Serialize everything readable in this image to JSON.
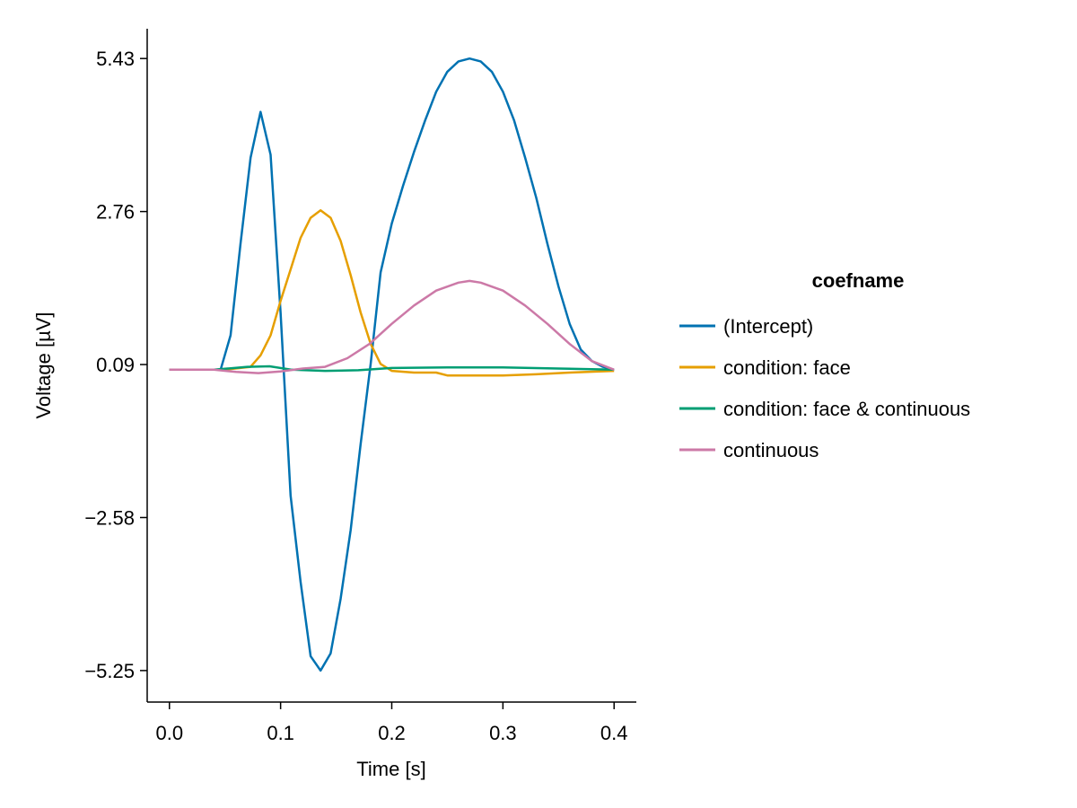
{
  "chart_data": {
    "type": "line",
    "xlabel": "Time [s]",
    "ylabel": "Voltage [µV]",
    "xlim": [
      -0.02,
      0.42
    ],
    "ylim": [
      -5.8,
      5.95
    ],
    "x_ticks": [
      "0.0",
      "0.1",
      "0.2",
      "0.3",
      "0.4"
    ],
    "x_tick_values": [
      0.0,
      0.1,
      0.2,
      0.3,
      0.4
    ],
    "y_ticks": [
      "5.43",
      "2.76",
      "0.09",
      "−2.58",
      "−5.25"
    ],
    "y_tick_values": [
      5.43,
      2.76,
      0.09,
      -2.58,
      -5.25
    ],
    "grid": false,
    "legend": {
      "title": "coefname",
      "placement": "right"
    },
    "series": [
      {
        "name": "(Intercept)",
        "color": "#0072B2",
        "x": [
          0.0,
          0.02,
          0.046,
          0.055,
          0.064,
          0.073,
          0.082,
          0.091,
          0.1,
          0.109,
          0.118,
          0.127,
          0.136,
          0.145,
          0.154,
          0.163,
          0.172,
          0.181,
          0.19,
          0.2,
          0.21,
          0.22,
          0.23,
          0.24,
          0.25,
          0.26,
          0.27,
          0.28,
          0.29,
          0.3,
          0.31,
          0.32,
          0.33,
          0.34,
          0.35,
          0.36,
          0.37,
          0.38,
          0.39,
          0.4
        ],
        "y": [
          0.0,
          0.0,
          0.0,
          0.6,
          2.2,
          3.7,
          4.5,
          3.75,
          1.0,
          -2.2,
          -3.7,
          -5.0,
          -5.25,
          -4.95,
          -4.0,
          -2.8,
          -1.3,
          0.1,
          1.7,
          2.55,
          3.2,
          3.8,
          4.35,
          4.85,
          5.2,
          5.38,
          5.43,
          5.38,
          5.2,
          4.85,
          4.35,
          3.7,
          3.0,
          2.2,
          1.45,
          0.8,
          0.35,
          0.15,
          0.05,
          0.0
        ]
      },
      {
        "name": "condition: face",
        "color": "#E69F00",
        "x": [
          0.0,
          0.05,
          0.073,
          0.082,
          0.091,
          0.1,
          0.109,
          0.118,
          0.127,
          0.136,
          0.145,
          0.154,
          0.163,
          0.172,
          0.181,
          0.19,
          0.2,
          0.22,
          0.24,
          0.25,
          0.28,
          0.3,
          0.33,
          0.36,
          0.4
        ],
        "y": [
          0.0,
          0.0,
          0.05,
          0.25,
          0.6,
          1.2,
          1.75,
          2.3,
          2.65,
          2.78,
          2.65,
          2.25,
          1.65,
          1.0,
          0.45,
          0.1,
          -0.02,
          -0.05,
          -0.05,
          -0.1,
          -0.1,
          -0.1,
          -0.08,
          -0.05,
          -0.02
        ]
      },
      {
        "name": "condition: face & continuous",
        "color": "#009E73",
        "x": [
          0.0,
          0.04,
          0.07,
          0.09,
          0.11,
          0.14,
          0.17,
          0.2,
          0.25,
          0.3,
          0.35,
          0.4
        ],
        "y": [
          0.0,
          0.0,
          0.05,
          0.06,
          0.0,
          -0.02,
          -0.01,
          0.03,
          0.04,
          0.04,
          0.02,
          0.0
        ]
      },
      {
        "name": "continuous",
        "color": "#CC79A7",
        "x": [
          0.0,
          0.04,
          0.06,
          0.08,
          0.1,
          0.12,
          0.14,
          0.16,
          0.18,
          0.2,
          0.22,
          0.24,
          0.26,
          0.27,
          0.28,
          0.3,
          0.32,
          0.34,
          0.36,
          0.38,
          0.4
        ],
        "y": [
          0.0,
          0.0,
          -0.04,
          -0.06,
          -0.03,
          0.02,
          0.05,
          0.2,
          0.45,
          0.8,
          1.12,
          1.38,
          1.52,
          1.55,
          1.52,
          1.38,
          1.12,
          0.8,
          0.45,
          0.15,
          0.0
        ]
      }
    ]
  }
}
